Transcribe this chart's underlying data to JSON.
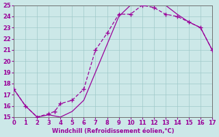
{
  "xlabel": "Windchill (Refroidissement éolien,°C)",
  "xlim": [
    0,
    17
  ],
  "ylim": [
    15,
    25
  ],
  "xticks": [
    0,
    1,
    2,
    3,
    4,
    5,
    6,
    7,
    8,
    9,
    10,
    11,
    12,
    13,
    14,
    15,
    16,
    17
  ],
  "yticks": [
    15,
    16,
    17,
    18,
    19,
    20,
    21,
    22,
    23,
    24,
    25
  ],
  "bg_color": "#cce8e8",
  "grid_color": "#9fc9c9",
  "line_color": "#990099",
  "curve1_x": [
    0,
    1,
    2,
    3,
    4,
    5,
    6,
    7,
    8,
    9,
    10,
    11,
    12,
    13,
    14,
    15,
    16,
    17
  ],
  "curve1_y": [
    17.5,
    16.0,
    15.0,
    15.2,
    15.0,
    15.5,
    16.5,
    19.0,
    21.5,
    24.0,
    25.0,
    25.0,
    26.0,
    25.0,
    24.2,
    23.5,
    23.0,
    21.0
  ],
  "curve2_x": [
    0,
    1,
    2,
    3,
    3.5,
    4,
    5,
    6,
    7,
    8,
    9,
    10,
    11,
    12,
    13,
    14,
    15,
    16,
    17
  ],
  "curve2_y": [
    17.5,
    16.0,
    15.0,
    15.3,
    15.5,
    16.2,
    16.5,
    17.5,
    21.0,
    22.5,
    24.2,
    24.2,
    25.0,
    24.8,
    24.2,
    24.0,
    23.5,
    23.0,
    21.0
  ],
  "marker_style": "+"
}
